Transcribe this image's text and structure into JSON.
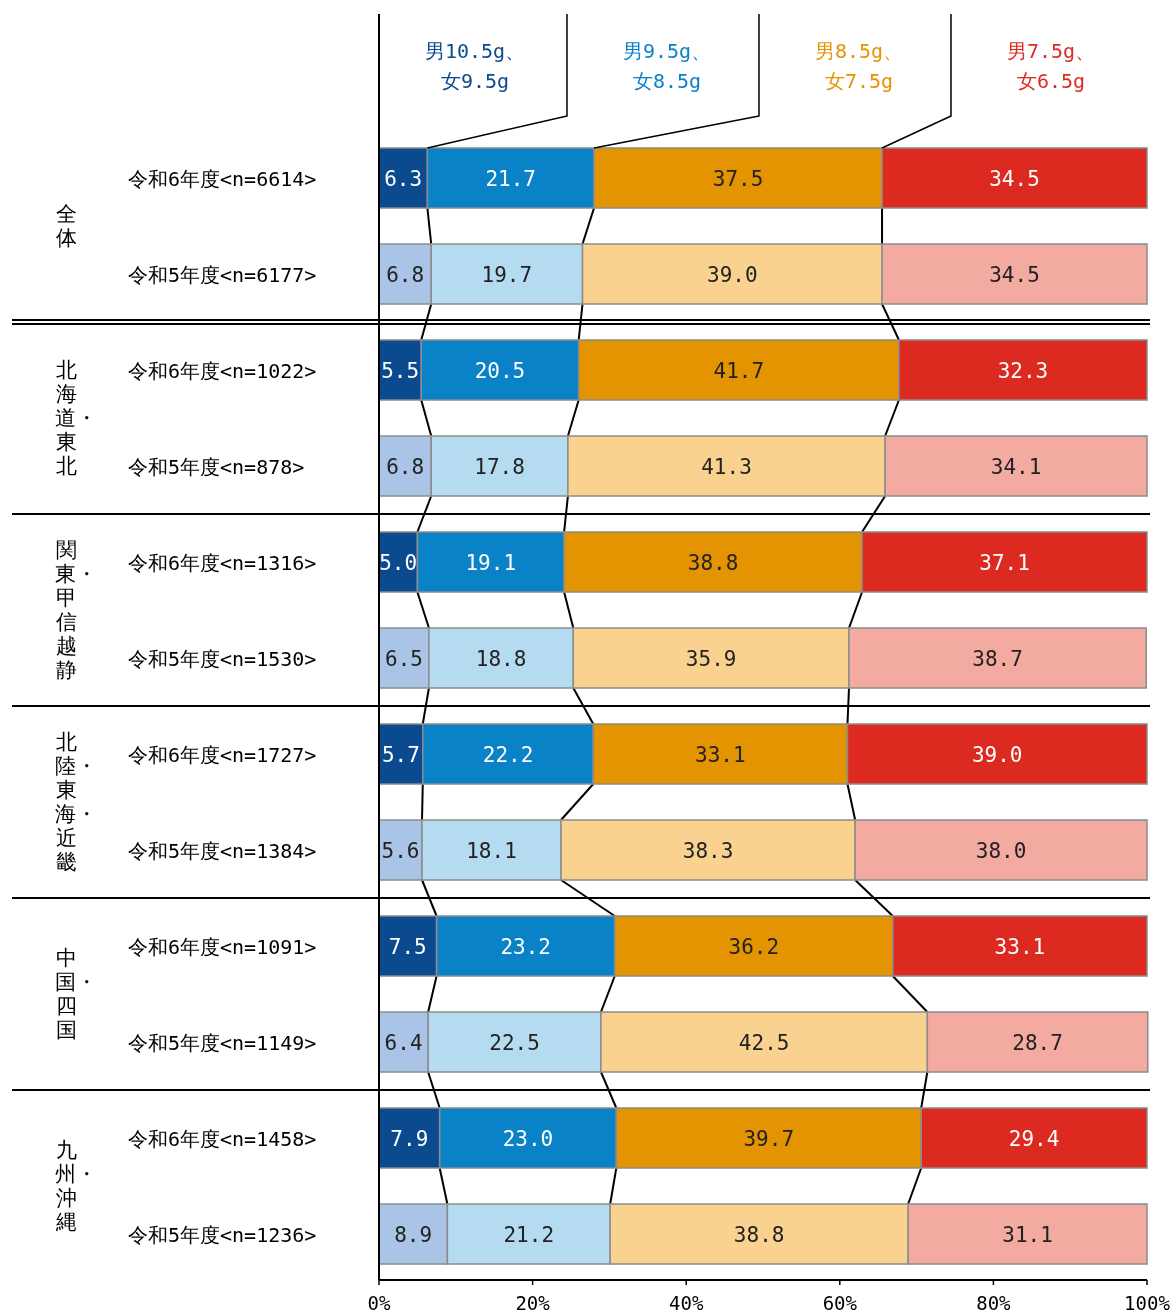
{
  "chart_data": {
    "type": "bar",
    "orientation": "horizontal",
    "stacked": true,
    "legend": "top",
    "grid": false,
    "categories": [
      "令和6年度<n=6614>",
      "令和5年度<n=6177>",
      "令和6年度<n=1022>",
      "令和5年度<n=878>",
      "令和6年度<n=1316>",
      "令和5年度<n=1530>",
      "令和6年度<n=1727>",
      "令和5年度<n=1384>",
      "令和6年度<n=1091>",
      "令和5年度<n=1149>",
      "令和6年度<n=1458>",
      "令和5年度<n=1236>"
    ],
    "series": [
      {
        "name": "男10.5g、女9.5g",
        "colors": [
          "#0b4a8e",
          "#a9c4e6",
          "#0b4a8e",
          "#a9c4e6",
          "#0b4a8e",
          "#a9c4e6",
          "#0b4a8e",
          "#a9c4e6",
          "#0b4a8e",
          "#a9c4e6",
          "#0b4a8e",
          "#a9c4e6"
        ],
        "values": [
          6.3,
          6.8,
          5.5,
          6.8,
          5.0,
          6.5,
          5.7,
          5.6,
          7.5,
          6.4,
          7.9,
          8.9
        ],
        "value_labels": [
          "6.3",
          "6.8",
          "5.5",
          "6.8",
          "5.0",
          "6.5",
          "5.7",
          "5.6",
          "7.5",
          "6.4",
          "7.9",
          "8.9"
        ]
      },
      {
        "name": "男9.5g、女8.5g",
        "colors": [
          "#0a82c8",
          "#b5dbf1",
          "#0a82c8",
          "#b5dbf1",
          "#0a82c8",
          "#b5dbf1",
          "#0a82c8",
          "#b5dbf1",
          "#0a82c8",
          "#b5dbf1",
          "#0a82c8",
          "#b5dbf1"
        ],
        "values": [
          21.7,
          19.7,
          20.5,
          17.8,
          19.1,
          18.8,
          22.2,
          18.1,
          23.2,
          22.5,
          23.0,
          21.2
        ],
        "value_labels": [
          "21.7",
          "19.7",
          "20.5",
          "17.8",
          "19.1",
          "18.8",
          "22.2",
          "18.1",
          "23.2",
          "22.5",
          "23.0",
          "21.2"
        ]
      },
      {
        "name": "男8.5g、女7.5g",
        "colors": [
          "#e39400",
          "#f9d290",
          "#e39400",
          "#f9d290",
          "#e39400",
          "#f9d290",
          "#e39400",
          "#f9d290",
          "#e39400",
          "#f9d290",
          "#e39400",
          "#f9d290"
        ],
        "values": [
          37.5,
          39.0,
          41.7,
          41.3,
          38.8,
          35.9,
          33.1,
          38.3,
          36.2,
          42.5,
          39.7,
          38.8
        ],
        "value_labels": [
          "37.5",
          "39.0",
          "41.7",
          "41.3",
          "38.8",
          "35.9",
          "33.1",
          "38.3",
          "36.2",
          "42.5",
          "39.7",
          "38.8"
        ]
      },
      {
        "name": "男7.5g、女6.5g",
        "colors": [
          "#dc2a20",
          "#f3aaa0",
          "#dc2a20",
          "#f3aaa0",
          "#dc2a20",
          "#f3aaa0",
          "#dc2a20",
          "#f3aaa0",
          "#dc2a20",
          "#f3aaa0",
          "#dc2a20",
          "#f3aaa0"
        ],
        "values": [
          34.5,
          34.5,
          32.3,
          34.1,
          37.1,
          38.7,
          39.0,
          38.0,
          33.1,
          28.7,
          29.4,
          31.1
        ],
        "value_labels": [
          "34.5",
          "34.5",
          "32.3",
          "34.1",
          "37.1",
          "38.7",
          "39.0",
          "38.0",
          "33.1",
          "28.7",
          "29.4",
          "31.1"
        ]
      }
    ],
    "xlim": [
      0,
      100
    ],
    "xticks": [
      {
        "value": 0,
        "label": "0%"
      },
      {
        "value": 20,
        "label": "20%"
      },
      {
        "value": 40,
        "label": "40%"
      },
      {
        "value": 60,
        "label": "60%"
      },
      {
        "value": 80,
        "label": "80%"
      },
      {
        "value": 100,
        "label": "100%"
      }
    ],
    "annotations": [
      "全体",
      "北海道・東北",
      "関東・甲信越静",
      "北陸・東海・近畿",
      "中国・四国",
      "九州・沖縄"
    ]
  }
}
